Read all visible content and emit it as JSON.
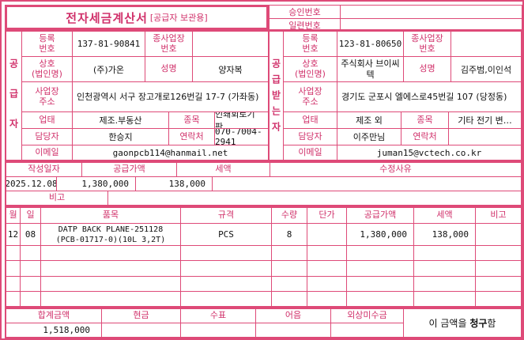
{
  "colors": {
    "accent_text": "#d0306a",
    "accent_border": "#de4a78"
  },
  "title": {
    "main": "전자세금계산서",
    "sub": "[공급자 보관용]"
  },
  "approval": {
    "rows": [
      {
        "label": "승인번호",
        "value": ""
      },
      {
        "label": "일련번호",
        "value": ""
      }
    ]
  },
  "supplier": {
    "side_label": "공급자",
    "reg_label": "등록\n번호",
    "reg_value": "137-81-90841",
    "subbiz_label": "종사업장\n번호",
    "subbiz_value": "",
    "name_label": "상호\n(법인명)",
    "name_value": "(주)가온",
    "ceo_label": "성명",
    "ceo_value": "양자복",
    "addr_label": "사업장\n주소",
    "addr_value": "인천광역시 서구 장고개로126번길 17-7 (가좌동)",
    "biztype_label": "업태",
    "biztype_value": "제조.부동산",
    "bizitem_label": "종목",
    "bizitem_value": "인쇄회로기판…",
    "manager_label": "담당자",
    "manager_value": "한승지",
    "phone_label": "연락처",
    "phone_value": "070-7004-2941",
    "email_label": "이메일",
    "email_value": "gaonpcb114@hanmail.net"
  },
  "buyer": {
    "side_label": "공급받는자",
    "reg_label": "등록\n번호",
    "reg_value": "123-81-80650",
    "subbiz_label": "종사업장\n번호",
    "subbiz_value": "",
    "name_label": "상호\n(법인명)",
    "name_value": "주식회사 브이씨텍",
    "ceo_label": "성명",
    "ceo_value": "김주범,이인석",
    "addr_label": "사업장\n주소",
    "addr_value": "경기도 군포시 엘에스로45번길 107 (당정동)",
    "biztype_label": "업태",
    "biztype_value": "제조 외",
    "bizitem_label": "종목",
    "bizitem_value": "기타 전기 변…",
    "manager_label": "담당자",
    "manager_value": "이주만님",
    "phone_label": "연락처",
    "phone_value": "",
    "email_label": "이메일",
    "email_value": "juman15@vctech.co.kr"
  },
  "summary": {
    "date_label": "작성일자",
    "date_value": "2025.12.08",
    "supply_label": "공급가액",
    "supply_value": "1,380,000",
    "tax_label": "세액",
    "tax_value": "138,000",
    "revision_label": "수정사유",
    "revision_value": "",
    "remark_label": "비고",
    "remark_value": ""
  },
  "items": {
    "headers": {
      "month": "월",
      "day": "일",
      "name": "품목",
      "spec": "규격",
      "qty": "수량",
      "unit_price": "단가",
      "supply": "공급가액",
      "tax": "세액",
      "note": "비고"
    },
    "rows": [
      {
        "month": "12",
        "day": "08",
        "name": "DATP BACK PLANE-251128 (PCB-01717-0)(10L 3,2T)",
        "spec": "PCS",
        "qty": "8",
        "unit_price": "",
        "supply": "1,380,000",
        "tax": "138,000",
        "note": ""
      }
    ]
  },
  "footer": {
    "total_label": "합계금액",
    "total_value": "1,518,000",
    "cash_label": "현금",
    "cash_value": "",
    "check_label": "수표",
    "check_value": "",
    "bill_label": "어음",
    "bill_value": "",
    "credit_label": "외상미수금",
    "credit_value": "",
    "statement_prefix": "이 금액을 ",
    "statement_bold": "청구",
    "statement_suffix": "함"
  }
}
